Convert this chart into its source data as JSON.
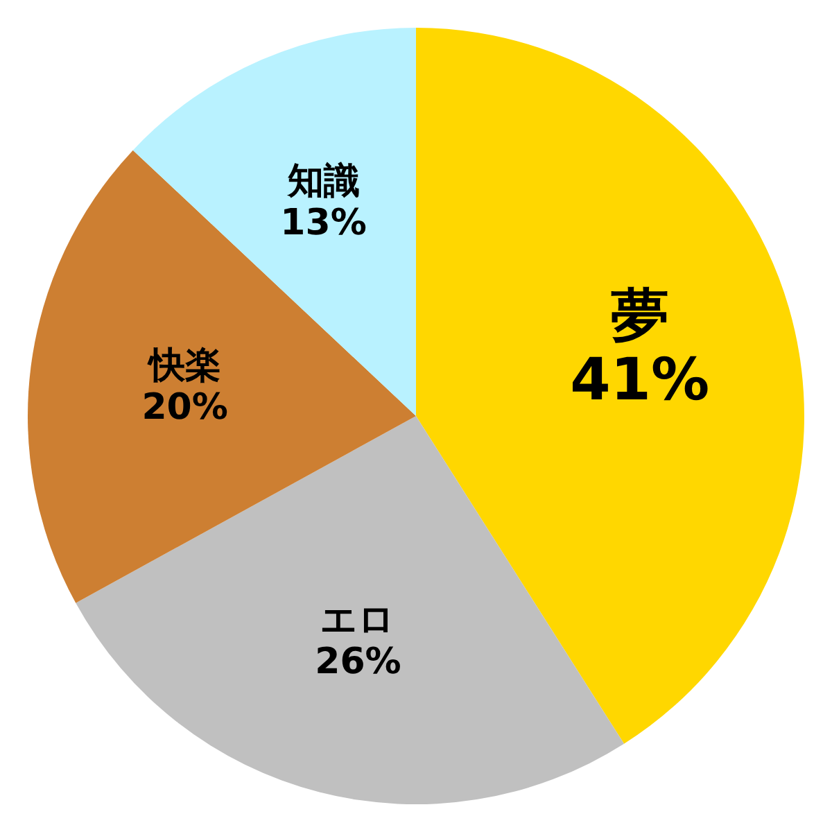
{
  "chart_data": {
    "type": "pie",
    "categories": [
      "夢",
      "エロ",
      "快楽",
      "知識"
    ],
    "values": [
      41,
      26,
      20,
      13
    ],
    "colors": [
      "#ffd700",
      "#c0c0c0",
      "#cd7f32",
      "#b9f2ff"
    ],
    "value_labels": [
      "41%",
      "26%",
      "20%",
      "13%"
    ]
  }
}
